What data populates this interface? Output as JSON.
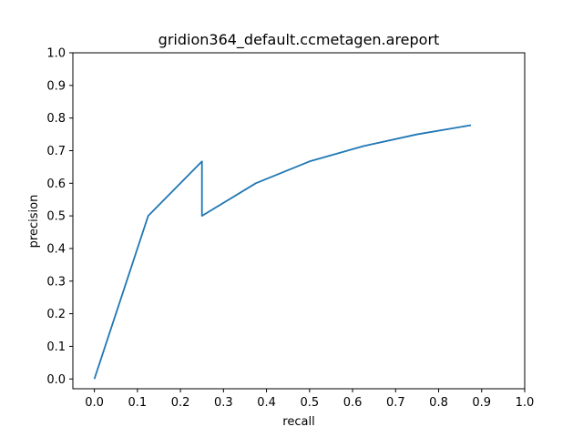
{
  "chart_data": {
    "type": "line",
    "title": "gridion364_default.ccmetagen.areport",
    "xlabel": "recall",
    "ylabel": "precision",
    "xlim": [
      -0.05,
      1.0
    ],
    "ylim": [
      -0.03,
      1.0
    ],
    "xticks": [
      0.0,
      0.1,
      0.2,
      0.3,
      0.4,
      0.5,
      0.6,
      0.7,
      0.8,
      0.9,
      1.0
    ],
    "xtick_labels": [
      "0.0",
      "0.1",
      "0.2",
      "0.3",
      "0.4",
      "0.5",
      "0.6",
      "0.7",
      "0.8",
      "0.9",
      "1.0"
    ],
    "yticks": [
      0.0,
      0.1,
      0.2,
      0.3,
      0.4,
      0.5,
      0.6,
      0.7,
      0.8,
      0.9,
      1.0
    ],
    "ytick_labels": [
      "0.0",
      "0.1",
      "0.2",
      "0.3",
      "0.4",
      "0.5",
      "0.6",
      "0.7",
      "0.8",
      "0.9",
      "1.0"
    ],
    "grid": false,
    "legend": "none",
    "series": [
      {
        "color": "#1f77b4",
        "x": [
          0.0,
          0.125,
          0.25,
          0.25,
          0.375,
          0.5,
          0.625,
          0.75,
          0.875
        ],
        "y": [
          0.0,
          0.5,
          0.667,
          0.5,
          0.6,
          0.667,
          0.714,
          0.75,
          0.778
        ]
      }
    ]
  }
}
